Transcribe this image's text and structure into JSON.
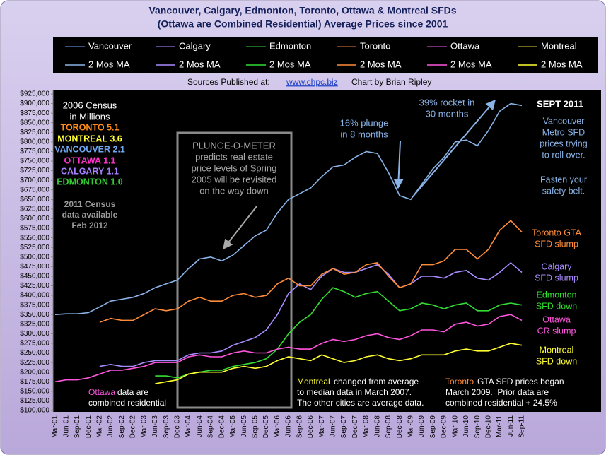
{
  "chart_data": {
    "type": "line",
    "title": "Vancouver, Calgary, Edmonton, Toronto, Ottawa & Montreal SFDs",
    "subtitle": "(Ottawa are Combined Residential) Average Prices since 2001",
    "source_label": "Sources Published at:",
    "source_link": "www.chpc.biz",
    "credit": "Chart by Brian Ripley",
    "categories": [
      "Mar-01",
      "Jun-01",
      "Sep-01",
      "Dec-01",
      "Mar-02",
      "Jun-02",
      "Sep-02",
      "Dec-02",
      "Mar-03",
      "Jun-03",
      "Sep-03",
      "Dec-03",
      "Mar-04",
      "Jun-04",
      "Sep-04",
      "Dec-04",
      "Mar-05",
      "Jun-05",
      "Sep-05",
      "Dec-05",
      "Mar-06",
      "Jun-06",
      "Sep-06",
      "Dec-06",
      "Mar-07",
      "Jun-07",
      "Sep-07",
      "Dec-07",
      "Mar-08",
      "Jun-08",
      "Sep-08",
      "Dec-08",
      "Mar-09",
      "Jun-09",
      "Sep-09",
      "Dec-09",
      "Mar-10",
      "Jun-10",
      "Sep-10",
      "Dec-10",
      "Mar-11",
      "Jun-11",
      "Sep-11"
    ],
    "series": [
      {
        "name": "Vancouver",
        "color": "#4a6fa8",
        "values": [
          350000,
          352000,
          352000,
          355000,
          370000,
          385000,
          390000,
          395000,
          405000,
          420000,
          430000,
          440000,
          470000,
          495000,
          500000,
          490000,
          505000,
          530000,
          555000,
          570000,
          615000,
          650000,
          665000,
          680000,
          710000,
          735000,
          740000,
          760000,
          775000,
          770000,
          720000,
          660000,
          650000,
          690000,
          730000,
          760000,
          800000,
          805000,
          790000,
          830000,
          880000,
          900000,
          895000
        ]
      },
      {
        "name": "2 Mos MA",
        "color": "#8ab4e8",
        "values": [
          350000,
          352000,
          352000,
          355000,
          370000,
          385000,
          390000,
          395000,
          405000,
          420000,
          430000,
          440000,
          470000,
          495000,
          500000,
          490000,
          505000,
          530000,
          555000,
          570000,
          615000,
          650000,
          665000,
          680000,
          710000,
          735000,
          740000,
          760000,
          775000,
          770000,
          720000,
          660000,
          650000,
          690000,
          730000,
          760000,
          800000,
          805000,
          790000,
          830000,
          880000,
          900000,
          895000
        ]
      },
      {
        "name": "Calgary",
        "color": "#7b5fc0",
        "values": [
          null,
          null,
          null,
          null,
          215000,
          220000,
          215000,
          215000,
          225000,
          230000,
          230000,
          230000,
          245000,
          250000,
          250000,
          255000,
          270000,
          280000,
          290000,
          310000,
          350000,
          405000,
          430000,
          415000,
          450000,
          470000,
          460000,
          460000,
          470000,
          480000,
          455000,
          420000,
          430000,
          450000,
          450000,
          445000,
          460000,
          465000,
          445000,
          440000,
          460000,
          485000,
          460000
        ]
      },
      {
        "name": "2 Mos MA",
        "color": "#a98bff",
        "values": [
          null,
          null,
          null,
          null,
          215000,
          220000,
          215000,
          215000,
          225000,
          230000,
          230000,
          230000,
          245000,
          250000,
          250000,
          255000,
          270000,
          280000,
          290000,
          310000,
          350000,
          405000,
          430000,
          415000,
          450000,
          470000,
          460000,
          460000,
          470000,
          480000,
          455000,
          420000,
          430000,
          450000,
          450000,
          445000,
          460000,
          465000,
          445000,
          440000,
          460000,
          485000,
          460000
        ]
      },
      {
        "name": "Edmonton",
        "color": "#2a8a2a",
        "values": [
          null,
          null,
          null,
          null,
          null,
          null,
          null,
          null,
          null,
          190000,
          190000,
          185000,
          195000,
          200000,
          205000,
          205000,
          215000,
          220000,
          225000,
          235000,
          260000,
          300000,
          330000,
          350000,
          390000,
          420000,
          410000,
          395000,
          405000,
          410000,
          385000,
          360000,
          365000,
          380000,
          375000,
          365000,
          375000,
          380000,
          360000,
          360000,
          375000,
          380000,
          375000
        ]
      },
      {
        "name": "2 Mos MA",
        "color": "#33dd33",
        "values": [
          null,
          null,
          null,
          null,
          null,
          null,
          null,
          null,
          null,
          190000,
          190000,
          185000,
          195000,
          200000,
          205000,
          205000,
          215000,
          220000,
          225000,
          235000,
          260000,
          300000,
          330000,
          350000,
          390000,
          420000,
          410000,
          395000,
          405000,
          410000,
          385000,
          360000,
          365000,
          380000,
          375000,
          365000,
          375000,
          380000,
          360000,
          360000,
          375000,
          380000,
          375000
        ]
      },
      {
        "name": "Toronto",
        "color": "#a0522d",
        "values": [
          null,
          null,
          null,
          null,
          330000,
          340000,
          335000,
          335000,
          350000,
          365000,
          360000,
          365000,
          385000,
          395000,
          385000,
          385000,
          400000,
          405000,
          395000,
          400000,
          430000,
          445000,
          425000,
          425000,
          455000,
          470000,
          455000,
          460000,
          480000,
          485000,
          450000,
          420000,
          430000,
          480000,
          480000,
          490000,
          520000,
          520000,
          495000,
          520000,
          570000,
          595000,
          565000
        ]
      },
      {
        "name": "2 Mos MA",
        "color": "#ff8c3a",
        "values": [
          null,
          null,
          null,
          null,
          330000,
          340000,
          335000,
          335000,
          350000,
          365000,
          360000,
          365000,
          385000,
          395000,
          385000,
          385000,
          400000,
          405000,
          395000,
          400000,
          430000,
          445000,
          425000,
          425000,
          455000,
          470000,
          455000,
          460000,
          480000,
          485000,
          450000,
          420000,
          430000,
          480000,
          480000,
          490000,
          520000,
          520000,
          495000,
          520000,
          570000,
          595000,
          565000
        ]
      },
      {
        "name": "Ottawa",
        "color": "#a03c9a",
        "values": [
          175000,
          180000,
          180000,
          185000,
          195000,
          205000,
          205000,
          210000,
          215000,
          225000,
          225000,
          225000,
          240000,
          245000,
          240000,
          240000,
          250000,
          255000,
          250000,
          250000,
          260000,
          265000,
          260000,
          260000,
          275000,
          285000,
          280000,
          285000,
          295000,
          300000,
          290000,
          285000,
          295000,
          310000,
          310000,
          305000,
          325000,
          330000,
          320000,
          325000,
          345000,
          350000,
          335000
        ]
      },
      {
        "name": "2 Mos MA",
        "color": "#ff55dd",
        "values": [
          175000,
          180000,
          180000,
          185000,
          195000,
          205000,
          205000,
          210000,
          215000,
          225000,
          225000,
          225000,
          240000,
          245000,
          240000,
          240000,
          250000,
          255000,
          250000,
          250000,
          260000,
          265000,
          260000,
          260000,
          275000,
          285000,
          280000,
          285000,
          295000,
          300000,
          290000,
          285000,
          295000,
          310000,
          310000,
          305000,
          325000,
          330000,
          320000,
          325000,
          345000,
          350000,
          335000
        ]
      },
      {
        "name": "Montreal",
        "color": "#9a8a30",
        "values": [
          null,
          null,
          null,
          null,
          null,
          null,
          null,
          null,
          null,
          170000,
          175000,
          180000,
          195000,
          200000,
          200000,
          200000,
          210000,
          215000,
          210000,
          215000,
          230000,
          240000,
          235000,
          230000,
          245000,
          235000,
          225000,
          230000,
          240000,
          245000,
          235000,
          230000,
          235000,
          245000,
          245000,
          245000,
          255000,
          260000,
          255000,
          255000,
          265000,
          275000,
          270000
        ]
      },
      {
        "name": "2 Mos MA",
        "color": "#ffff33",
        "values": [
          null,
          null,
          null,
          null,
          null,
          null,
          null,
          null,
          null,
          170000,
          175000,
          180000,
          195000,
          200000,
          200000,
          200000,
          210000,
          215000,
          210000,
          215000,
          230000,
          240000,
          235000,
          230000,
          245000,
          235000,
          225000,
          230000,
          240000,
          245000,
          235000,
          230000,
          235000,
          245000,
          245000,
          245000,
          255000,
          260000,
          255000,
          255000,
          265000,
          275000,
          270000
        ]
      }
    ],
    "ylim": [
      100000,
      925000
    ],
    "yticks": [
      {
        "value": 100000,
        "label": "$100,000"
      },
      {
        "value": 125000,
        "label": "$125,000"
      },
      {
        "value": 150000,
        "label": "$150,000"
      },
      {
        "value": 175000,
        "label": "$175,000"
      },
      {
        "value": 200000,
        "label": "$200,000"
      },
      {
        "value": 225000,
        "label": "$225,000"
      },
      {
        "value": 250000,
        "label": "$250,000"
      },
      {
        "value": 275000,
        "label": "$275,000"
      },
      {
        "value": 300000,
        "label": "$300,000"
      },
      {
        "value": 325000,
        "label": "$325,000"
      },
      {
        "value": 350000,
        "label": "$350,000"
      },
      {
        "value": 375000,
        "label": "$375,000"
      },
      {
        "value": 400000,
        "label": "$400,000"
      },
      {
        "value": 425000,
        "label": "$425,000"
      },
      {
        "value": 450000,
        "label": "$450,000"
      },
      {
        "value": 475000,
        "label": "$475,000"
      },
      {
        "value": 500000,
        "label": "$500,000"
      },
      {
        "value": 525000,
        "label": "$525,000"
      },
      {
        "value": 550000,
        "label": "$550,000"
      },
      {
        "value": 575000,
        "label": "$575,000"
      },
      {
        "value": 600000,
        "label": "$600,000"
      },
      {
        "value": 625000,
        "label": "$625,000"
      },
      {
        "value": 650000,
        "label": "$650,000"
      },
      {
        "value": 675000,
        "label": "$675,000"
      },
      {
        "value": 700000,
        "label": "$700,000"
      },
      {
        "value": 725000,
        "label": "$725,000"
      },
      {
        "value": 750000,
        "label": "$750,000"
      },
      {
        "value": 775000,
        "label": "$775,000"
      },
      {
        "value": 800000,
        "label": "$800,000"
      },
      {
        "value": 825000,
        "label": "$825,000"
      },
      {
        "value": 850000,
        "label": "$850,000"
      },
      {
        "value": 875000,
        "label": "$875,000"
      },
      {
        "value": 900000,
        "label": "$900,000"
      },
      {
        "value": 925000,
        "label": "$925,000"
      }
    ],
    "grid": false,
    "annotations": [
      {
        "lines": [
          "2006 Census",
          "in Millions"
        ],
        "color": "#ffffff"
      },
      {
        "lines": [
          "TORONTO 5.1"
        ],
        "color": "#ff8c1a"
      },
      {
        "lines": [
          "MONTREAL 3.6"
        ],
        "color": "#ffff33"
      },
      {
        "lines": [
          "VANCOUVER 2.1"
        ],
        "color": "#6ea6f0"
      },
      {
        "lines": [
          "OTTAWA 1.1"
        ],
        "color": "#ff33cc"
      },
      {
        "lines": [
          "CALGARY 1.1"
        ],
        "color": "#a77dff"
      },
      {
        "lines": [
          "EDMONTON 1.0"
        ],
        "color": "#33cc33"
      },
      {
        "lines": [
          "2011 Census",
          "data available",
          "Feb 2012"
        ],
        "color": "#9a9a9a"
      },
      {
        "lines": [
          "PLUNGE-O-METER",
          "predicts real estate",
          "price levels of Spring",
          "2005 will be revisited",
          "on the way down"
        ],
        "color": "#a8a8a8"
      },
      {
        "lines": [
          "16% plunge",
          "in 8 months"
        ],
        "color": "#8ab4e8"
      },
      {
        "lines": [
          "39% rocket in",
          "30 months"
        ],
        "color": "#8ab4e8"
      },
      {
        "lines": [
          "SEPT 2011"
        ],
        "color": "#ffffff"
      },
      {
        "lines": [
          "Vancouver",
          "Metro SFD",
          "prices trying",
          "to roll over."
        ],
        "color": "#8ab4e8"
      },
      {
        "lines": [
          "Fasten your",
          "safety belt."
        ],
        "color": "#8ab4e8"
      },
      {
        "lines": [
          "Toronto GTA",
          "SFD slump"
        ],
        "color": "#ff8c3a"
      },
      {
        "lines": [
          "Calgary",
          "SFD slump"
        ],
        "color": "#a98bff"
      },
      {
        "lines": [
          "Edmonton",
          "SFD down"
        ],
        "color": "#33dd33"
      },
      {
        "lines": [
          "Ottawa",
          "CR slump"
        ],
        "color": "#ff55dd"
      },
      {
        "lines": [
          "Montreal",
          "SFD down"
        ],
        "color": "#ffff33"
      },
      {
        "lines": [
          "Ottawa"
        ],
        "color": "#ff55dd"
      },
      {
        "lines": [
          "data are"
        ],
        "color": "#ffffff"
      },
      {
        "lines": [
          "combined residential"
        ],
        "color": "#ffffff"
      },
      {
        "lines": [
          "Montreal"
        ],
        "color": "#ffff33"
      },
      {
        "lines": [
          "changed from average"
        ],
        "color": "#ffffff"
      },
      {
        "lines": [
          "to median data in March 2007.",
          "The other cities are average data."
        ],
        "color": "#ffffff"
      },
      {
        "lines": [
          "Toronto"
        ],
        "color": "#ff8c3a"
      },
      {
        "lines": [
          "GTA SFD prices began"
        ],
        "color": "#ffffff"
      },
      {
        "lines": [
          "March 2009.  Prior data are",
          "combined residential + 24.5%"
        ],
        "color": "#ffffff"
      }
    ]
  }
}
